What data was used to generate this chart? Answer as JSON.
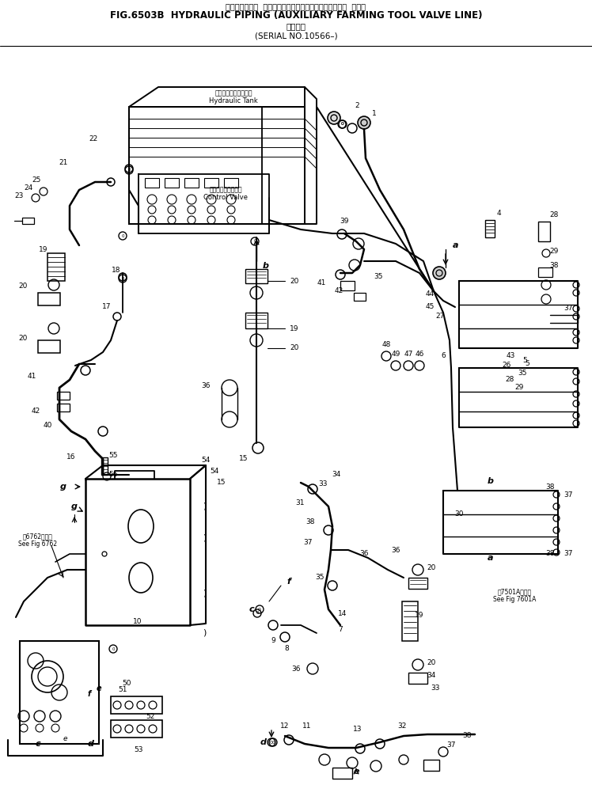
{
  "title_jp": "ハイドロリック  パイピング　　農　耕　補　助　バルブ  ライン",
  "title_en": "FIG.6503B  HYDRAULIC PIPING (AUXILIARY FARMING TOOL VALVE LINE)",
  "title_jp2": "通用号機",
  "title_serial": "(SERIAL NO.10566–)",
  "bg": "#ffffff",
  "lc": "#000000",
  "fig_w": 7.48,
  "fig_h": 10.16,
  "dpi": 100
}
